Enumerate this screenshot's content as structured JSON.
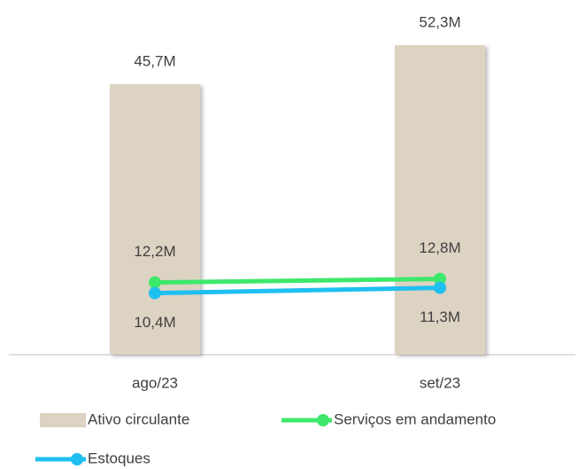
{
  "chart_data": {
    "type": "combo",
    "categories": [
      "ago/23",
      "set/23"
    ],
    "series": [
      {
        "name": "Ativo circulante",
        "type": "bar",
        "color": "#ddd3c3",
        "values": [
          45.7,
          52.3
        ],
        "value_labels": [
          "45,7M",
          "52,3M"
        ]
      },
      {
        "name": "Serviços em andamento",
        "type": "line",
        "color": "#3ee86a",
        "values": [
          12.2,
          12.8
        ],
        "value_labels": [
          "12,2M",
          "12,8M"
        ]
      },
      {
        "name": "Estoques",
        "type": "line",
        "color": "#1fbff0",
        "values": [
          10.4,
          11.3
        ],
        "value_labels": [
          "10,4M",
          "11,3M"
        ]
      }
    ]
  }
}
